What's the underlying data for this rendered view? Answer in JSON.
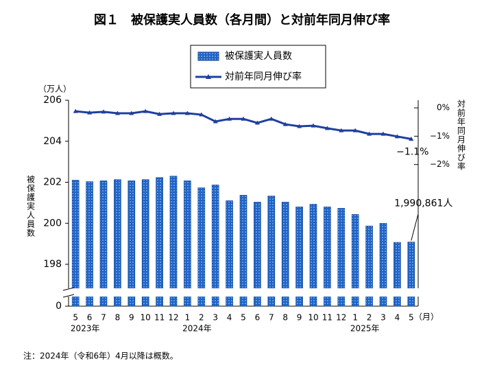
{
  "chart_data": {
    "type": "bar",
    "title": "図１　被保護実人員数（各月間）と対前年同月伸び率",
    "ylabel": "被保護実人員数",
    "yunit": "（万人）",
    "y2label": "対前年同月伸び率",
    "xunit": "（月）",
    "note": "注：2024年（令和6年）4月以降は概数。",
    "categories": [
      "5",
      "6",
      "7",
      "8",
      "9",
      "10",
      "11",
      "12",
      "1",
      "2",
      "3",
      "4",
      "5",
      "6",
      "7",
      "8",
      "9",
      "10",
      "11",
      "12",
      "1",
      "2",
      "3",
      "4",
      "5"
    ],
    "x_groups": [
      {
        "label": "2023年",
        "start": 0
      },
      {
        "label": "2024年",
        "start": 8
      },
      {
        "label": "2025年",
        "start": 20
      }
    ],
    "series": [
      {
        "name": "被保護実人員数",
        "type": "bar",
        "color": "#1f63c6",
        "values": [
          202.1,
          202.03,
          202.07,
          202.13,
          202.07,
          202.13,
          202.23,
          202.3,
          202.07,
          201.73,
          201.87,
          201.1,
          201.37,
          201.03,
          201.33,
          201.03,
          200.8,
          200.93,
          200.8,
          200.73,
          200.43,
          199.87,
          200.0,
          199.07,
          199.0861
        ],
        "value_labels": [
          null,
          null,
          null,
          null,
          null,
          null,
          null,
          null,
          null,
          null,
          null,
          null,
          null,
          null,
          null,
          null,
          null,
          null,
          null,
          null,
          null,
          null,
          null,
          null,
          "1,990,861人"
        ]
      },
      {
        "name": "対前年同月伸び率",
        "type": "line",
        "axis": "y2",
        "color": "#1f3f9f",
        "values": [
          -0.12,
          -0.17,
          -0.14,
          -0.19,
          -0.19,
          -0.12,
          -0.22,
          -0.19,
          -0.19,
          -0.24,
          -0.48,
          -0.39,
          -0.39,
          -0.53,
          -0.39,
          -0.58,
          -0.65,
          -0.63,
          -0.72,
          -0.8,
          -0.8,
          -0.92,
          -0.92,
          -1.01,
          -1.1
        ],
        "value_labels": [
          null,
          null,
          null,
          null,
          null,
          null,
          null,
          null,
          null,
          null,
          null,
          null,
          null,
          null,
          null,
          null,
          null,
          null,
          null,
          null,
          null,
          null,
          null,
          null,
          "−1.1%"
        ]
      }
    ],
    "ylim": [
      198,
      206
    ],
    "yticks": [
      0,
      198,
      200,
      202,
      204,
      206
    ],
    "axis_break": true,
    "y2lim": [
      -7.0,
      0.27
    ],
    "y2ticks": [
      {
        "value": 0,
        "label": "0%"
      },
      {
        "value": -1,
        "label": "−1%"
      },
      {
        "value": -2,
        "label": "−2%"
      }
    ],
    "legend": "top"
  }
}
